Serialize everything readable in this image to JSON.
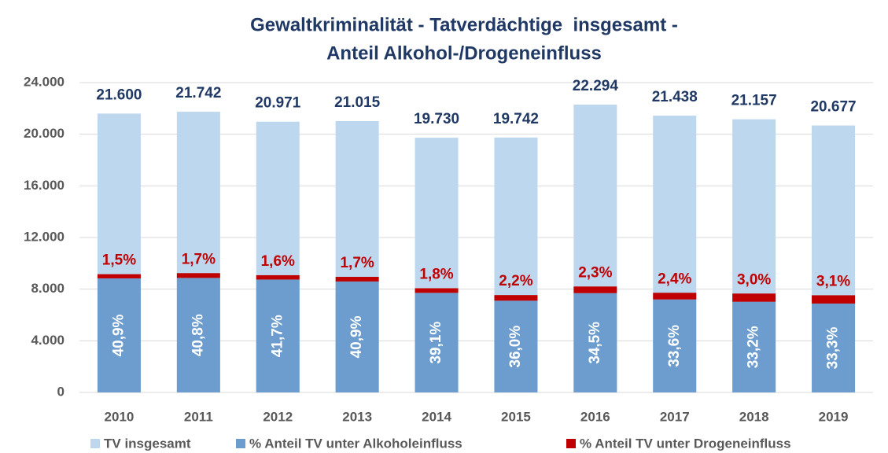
{
  "chart_data": {
    "type": "bar",
    "title": [
      "Gewaltkriminalität - Tatverdächtige  insgesamt -",
      "Anteil Alkohol-/Drogeneinfluss"
    ],
    "categories": [
      "2010",
      "2011",
      "2012",
      "2013",
      "2014",
      "2015",
      "2016",
      "2017",
      "2018",
      "2019"
    ],
    "series": [
      {
        "name": "TV insgesamt",
        "color": "#bdd7ee",
        "values": [
          21600,
          21742,
          20971,
          21015,
          19730,
          19742,
          22294,
          21438,
          21157,
          20677
        ],
        "value_labels": [
          "21.600",
          "21.742",
          "20.971",
          "21.015",
          "19.730",
          "19.742",
          "22.294",
          "21.438",
          "21.157",
          "20.677"
        ]
      },
      {
        "name": "% Anteil TV unter Alkoholeinfluss",
        "color": "#6d9dcf",
        "values": [
          40.9,
          40.8,
          41.7,
          40.9,
          39.1,
          36.0,
          34.5,
          33.6,
          33.2,
          33.3
        ],
        "value_labels": [
          "40,9%",
          "40,8%",
          "41,7%",
          "40,9%",
          "39,1%",
          "36,0%",
          "34,5%",
          "33,6%",
          "33,2%",
          "33,3%"
        ]
      },
      {
        "name": "% Anteil TV unter Drogeneinfluss",
        "color": "#c00000",
        "values": [
          1.5,
          1.7,
          1.6,
          1.7,
          1.8,
          2.2,
          2.3,
          2.4,
          3.0,
          3.1
        ],
        "value_labels": [
          "1,5%",
          "1,7%",
          "1,6%",
          "1,7%",
          "1,8%",
          "2,2%",
          "2,3%",
          "2,4%",
          "3,0%",
          "3,1%"
        ]
      }
    ],
    "ylim": [
      0,
      24000
    ],
    "yticks": [
      0,
      {
        "value": 4000,
        "label": "4.000"
      },
      {
        "value": 8000,
        "label": "8.000"
      },
      {
        "value": 12000,
        "label": "12.000"
      },
      {
        "value": 16000,
        "label": "16.000"
      },
      {
        "value": 20000,
        "label": "20.000"
      },
      {
        "value": 24000,
        "label": "24.000"
      }
    ],
    "grid": true,
    "legend": "bottom"
  }
}
